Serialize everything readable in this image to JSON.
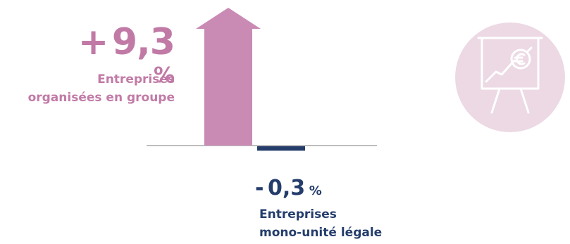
{
  "chart_data": {
    "type": "bar",
    "categories": [
      "Entreprises organisées en groupe",
      "Entreprises mono-unité légale"
    ],
    "values": [
      9.3,
      -0.3
    ],
    "unit": "%",
    "colors": [
      "#c98bb4",
      "#243d6b"
    ],
    "labels": [
      {
        "sign": "+",
        "value": "9,3",
        "pct": "%",
        "line1": "Entreprises",
        "line2": "organisées en groupe"
      },
      {
        "sign": "-",
        "value": "0,3",
        "pct": "%",
        "line1": "Entreprises",
        "line2": "mono-unité légale"
      }
    ],
    "arrow_on_positive": true
  },
  "icon": {
    "name": "presentation-board-euro-icon",
    "circle_color": "#ecd9e4",
    "stroke_color": "#ffffff"
  }
}
